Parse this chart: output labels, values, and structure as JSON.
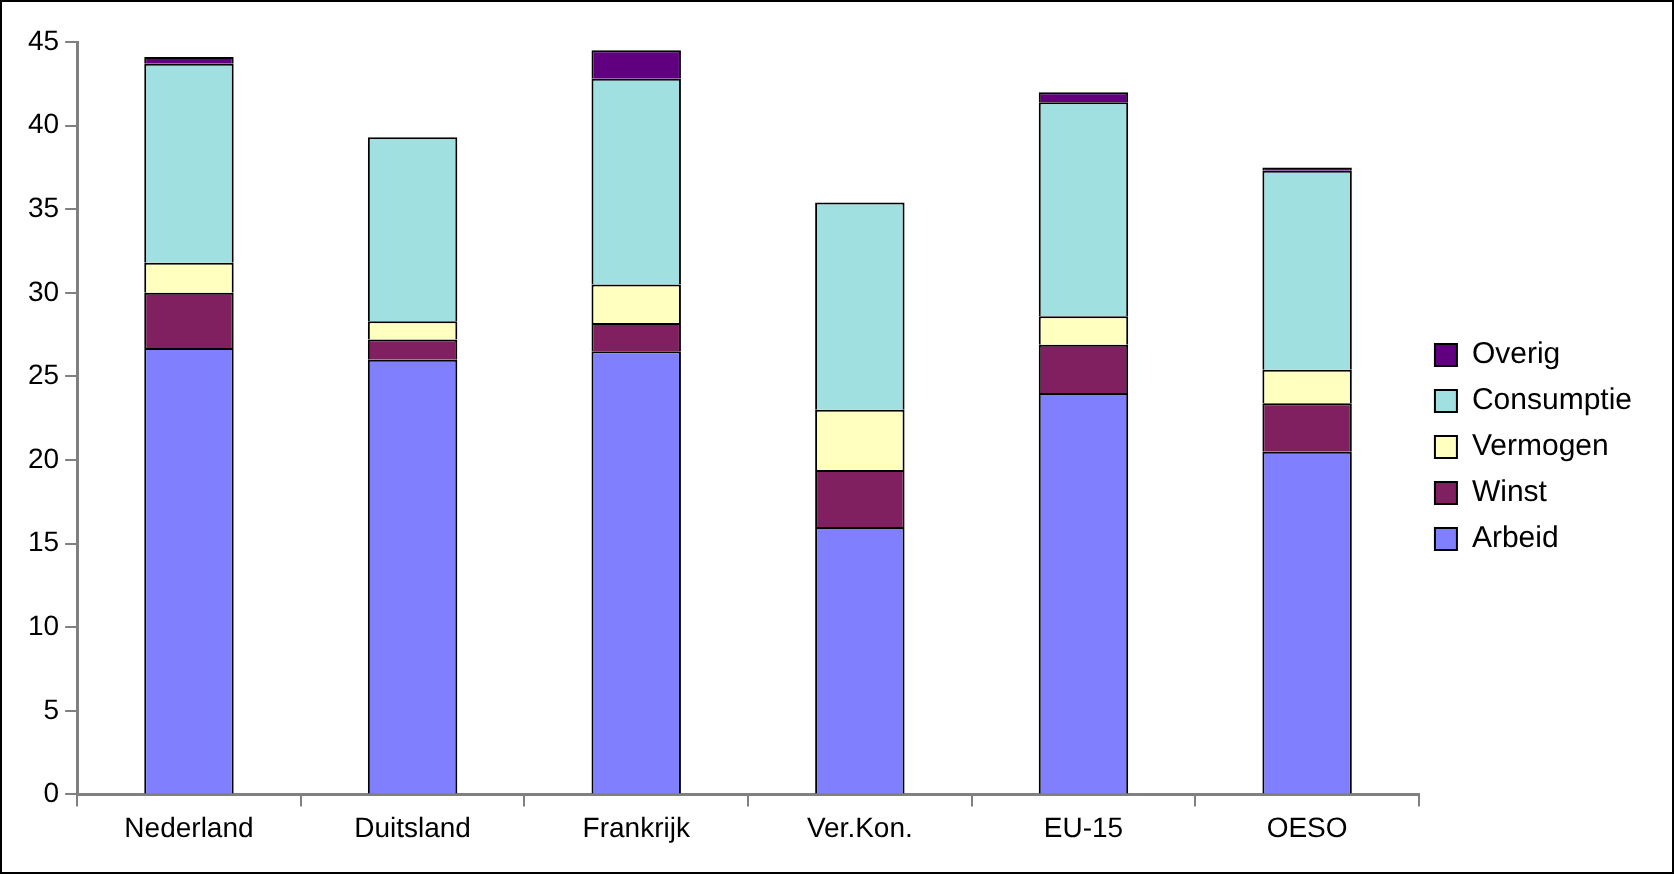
{
  "chart_data": {
    "type": "bar",
    "stacked": true,
    "categories": [
      "Nederland",
      "Duitsland",
      "Frankrijk",
      "Ver.Kon.",
      "EU-15",
      "OESO"
    ],
    "series": [
      {
        "name": "Arbeid",
        "color": "#8080ff",
        "values": [
          26.7,
          26.0,
          26.5,
          16.0,
          24.0,
          20.5
        ]
      },
      {
        "name": "Winst",
        "color": "#802060",
        "values": [
          3.3,
          1.2,
          1.7,
          3.4,
          2.9,
          2.9
        ]
      },
      {
        "name": "Vermogen",
        "color": "#ffffc0",
        "values": [
          1.8,
          1.1,
          2.3,
          3.6,
          1.7,
          2.0
        ]
      },
      {
        "name": "Consumptie",
        "color": "#a0e0e0",
        "values": [
          11.9,
          11.0,
          12.3,
          12.4,
          12.8,
          11.9
        ]
      },
      {
        "name": "Overig",
        "color": "#600080",
        "values": [
          0.4,
          null,
          1.7,
          null,
          0.6,
          0.2
        ]
      }
    ],
    "ylim": [
      0,
      45
    ],
    "yticks": [
      0,
      5,
      10,
      15,
      20,
      25,
      30,
      35,
      40,
      45
    ],
    "grid": false,
    "legend": "right"
  }
}
